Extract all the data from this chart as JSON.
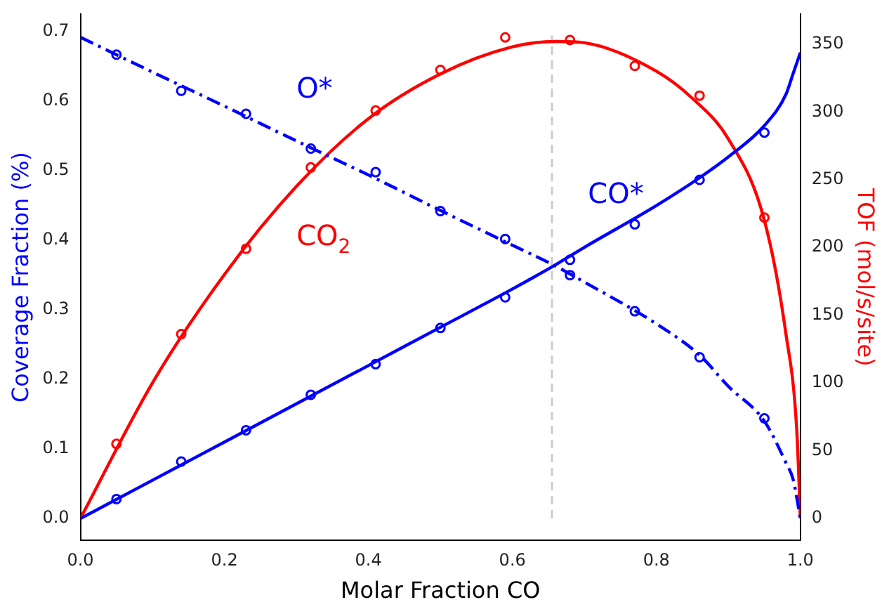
{
  "chart_data": {
    "type": "line",
    "xlabel": "Molar Fraction CO",
    "ylabel": "Coverage Fraction (%)",
    "y2label": "TOF (mol/s/site)",
    "xlim": [
      0,
      1
    ],
    "xticks": [
      {
        "value": 0,
        "label": "0.0"
      },
      {
        "value": 0.2,
        "label": "0.2"
      },
      {
        "value": 0.4,
        "label": "0.4"
      },
      {
        "value": 0.6,
        "label": "0.6"
      },
      {
        "value": 0.8,
        "label": "0.8"
      },
      {
        "value": 1,
        "label": "1.0"
      }
    ],
    "ylim": [
      -0.031,
      0.725
    ],
    "yticks": [
      {
        "value": 0,
        "label": "0.0"
      },
      0.1,
      0.2,
      0.3,
      0.4,
      0.5,
      0.6,
      0.7
    ],
    "y2lim": [
      -16,
      372
    ],
    "y2ticks": [
      0,
      50,
      100,
      150,
      200,
      250,
      300,
      350
    ],
    "grid": false,
    "legend": false,
    "series": [
      {
        "color": "#0000ff",
        "line_style": "dashed",
        "marker": "none",
        "x": [
          0,
          0.1,
          0.2,
          0.3,
          0.4,
          0.5,
          0.6,
          0.66,
          0.7,
          0.8,
          0.86,
          0.9,
          0.95,
          0.98,
          0.99,
          1.0
        ],
        "values": [
          0.692,
          0.642,
          0.593,
          0.543,
          0.494,
          0.443,
          0.393,
          0.363,
          0.34,
          0.28,
          0.235,
          0.19,
          0.14,
          0.08,
          0.056,
          0.0
        ]
      },
      {
        "color": "#0000ff",
        "line_style": "solid",
        "marker": "none",
        "x": [
          0,
          0.1,
          0.2,
          0.3,
          0.4,
          0.5,
          0.6,
          0.66,
          0.7,
          0.8,
          0.86,
          0.9,
          0.95,
          0.98,
          0.99,
          1.0
        ],
        "values": [
          0,
          0.055,
          0.11,
          0.165,
          0.22,
          0.275,
          0.33,
          0.365,
          0.39,
          0.45,
          0.49,
          0.52,
          0.565,
          0.61,
          0.64,
          0.67
        ]
      },
      {
        "color": "#ff0000",
        "line_style": "solid",
        "marker": "none",
        "axis": "y2",
        "x": [
          0,
          0.1,
          0.2,
          0.3,
          0.4,
          0.5,
          0.6,
          0.66,
          0.7,
          0.8,
          0.85,
          0.9,
          0.95,
          0.98,
          0.995,
          1.0
        ],
        "values": [
          0,
          100,
          180,
          245,
          295,
          328,
          348,
          352,
          351,
          330,
          310,
          280,
          220,
          136,
          65,
          0
        ]
      },
      {
        "type": "scatter",
        "color": "#0000ff",
        "marker": "circle",
        "x": [
          0.05,
          0.14,
          0.23,
          0.32,
          0.41,
          0.5,
          0.59,
          0.68,
          0.77,
          0.86,
          0.95
        ],
        "values": [
          0.667,
          0.615,
          0.582,
          0.532,
          0.498,
          0.442,
          0.402,
          0.35,
          0.298,
          0.232,
          0.144
        ]
      },
      {
        "type": "scatter",
        "color": "#0000ff",
        "marker": "circle",
        "x": [
          0.05,
          0.14,
          0.23,
          0.32,
          0.41,
          0.5,
          0.59,
          0.68,
          0.77,
          0.86,
          0.95
        ],
        "values": [
          0.028,
          0.082,
          0.127,
          0.178,
          0.222,
          0.274,
          0.318,
          0.372,
          0.423,
          0.487,
          0.555
        ]
      },
      {
        "type": "scatter",
        "color": "#ff0000",
        "marker": "circle",
        "axis": "y2",
        "x": [
          0.05,
          0.14,
          0.23,
          0.32,
          0.41,
          0.5,
          0.59,
          0.68,
          0.77,
          0.86,
          0.95
        ],
        "values": [
          55,
          136,
          199,
          259,
          301,
          331,
          355,
          353,
          334,
          312,
          222
        ]
      }
    ],
    "ref_lines": [
      {
        "axis": "x",
        "value": 0.655,
        "color": "#cccccc",
        "line_style": "dashed"
      }
    ],
    "annotations": [
      "O*",
      "CO*",
      "CO$_{2}$"
    ]
  }
}
